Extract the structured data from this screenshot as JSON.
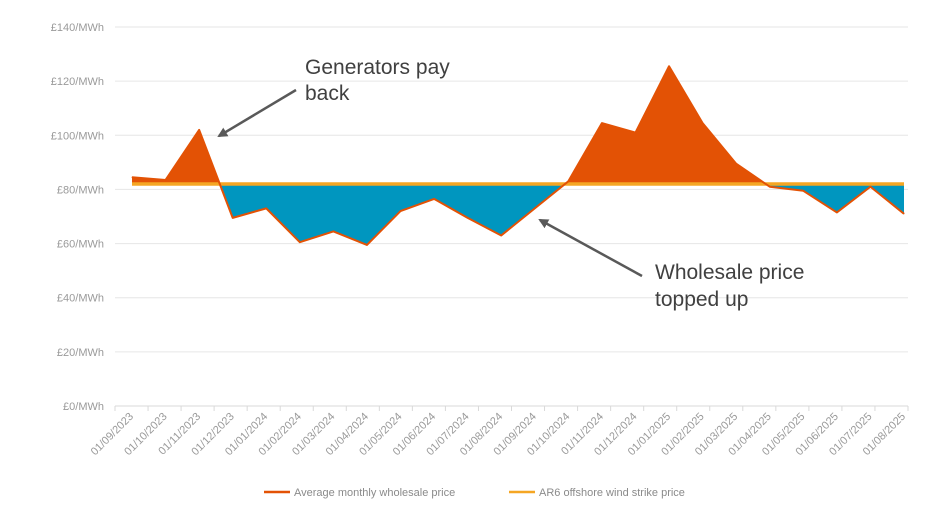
{
  "chart_data": {
    "type": "area",
    "title": "",
    "xlabel": "",
    "ylabel": "",
    "ylim": [
      0,
      140
    ],
    "y_ticks": [
      0,
      20,
      40,
      60,
      80,
      100,
      120,
      140
    ],
    "y_tick_labels": [
      "£0/MWh",
      "£20/MWh",
      "£40/MWh",
      "£60/MWh",
      "£80/MWh",
      "£100/MWh",
      "£120/MWh",
      "£140/MWh"
    ],
    "categories": [
      "01/09/2023",
      "01/10/2023",
      "01/11/2023",
      "01/12/2023",
      "01/01/2024",
      "01/02/2024",
      "01/03/2024",
      "01/04/2024",
      "01/05/2024",
      "01/06/2024",
      "01/07/2024",
      "01/08/2024",
      "01/09/2024",
      "01/10/2024",
      "01/11/2024",
      "01/12/2024",
      "01/01/2025",
      "01/02/2025",
      "01/03/2025",
      "01/04/2025",
      "01/05/2025",
      "01/06/2025",
      "01/07/2025",
      "01/08/2025"
    ],
    "series": [
      {
        "name": "Average monthly wholesale price",
        "color": "#e35205",
        "values": [
          84.5,
          83.5,
          102,
          69.5,
          73,
          60.5,
          64.5,
          59.5,
          72,
          76.5,
          69.5,
          63,
          73,
          83,
          104.5,
          101,
          125.5,
          104.5,
          89.5,
          81,
          79.5,
          71.5,
          81,
          71
        ]
      },
      {
        "name": "AR6 offshore wind strike price",
        "color": "#f5a623",
        "values": [
          82,
          82,
          82,
          82,
          82,
          82,
          82,
          82,
          82,
          82,
          82,
          82,
          82,
          82,
          82,
          82,
          82,
          82,
          82,
          82,
          82,
          82,
          82,
          82
        ]
      }
    ],
    "fill_above_color": "#e35205",
    "fill_below_color": "#0096bf",
    "grid": true,
    "legend_position": "bottom",
    "annotations": [
      {
        "text_lines": [
          "Generators pay",
          "back"
        ]
      },
      {
        "text_lines": [
          "Wholesale price",
          "topped up"
        ]
      }
    ]
  }
}
